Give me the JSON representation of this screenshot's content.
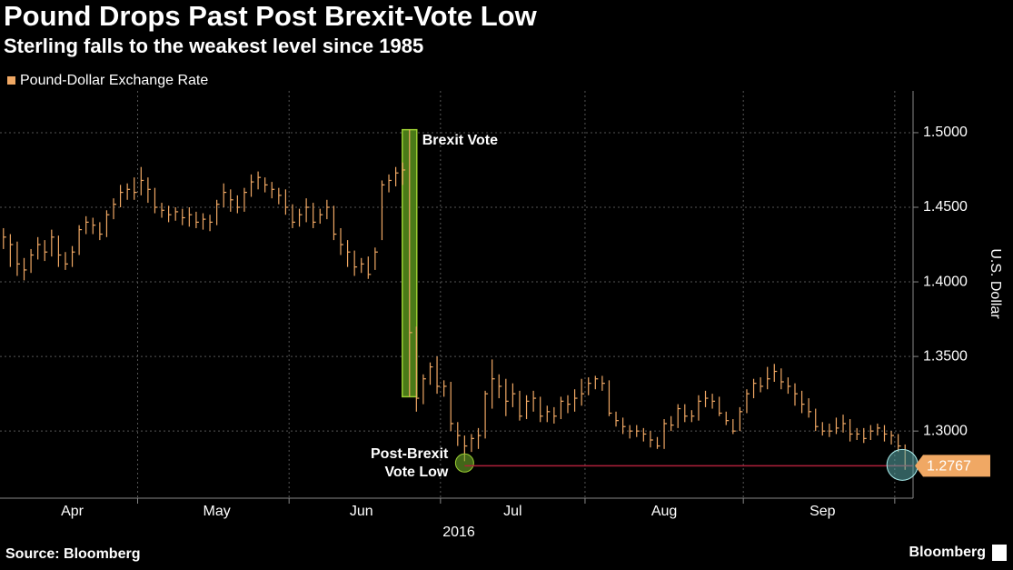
{
  "chart_data": {
    "type": "ohlc",
    "title": "Pound Drops Past Post Brexit-Vote Low",
    "subtitle": "Sterling falls to the weakest level since 1985",
    "source": "Source: Bloomberg",
    "brand": "Bloomberg",
    "y_label": "U.S. Dollar",
    "x_label": "2016",
    "categories": [
      null,
      null,
      null,
      null,
      null,
      null,
      null,
      null,
      null,
      null,
      "Apr",
      null,
      null,
      null,
      null,
      null,
      null,
      null,
      null,
      null,
      null,
      null,
      null,
      null,
      null,
      null,
      null,
      null,
      null,
      null,
      null,
      "May",
      null,
      null,
      null,
      null,
      null,
      null,
      null,
      null,
      null,
      null,
      null,
      null,
      null,
      null,
      null,
      null,
      null,
      null,
      null,
      null,
      "Jun",
      null,
      null,
      null,
      null,
      null,
      null,
      null,
      null,
      null,
      null,
      null,
      null,
      null,
      null,
      null,
      null,
      null,
      null,
      null,
      null,
      null,
      "Jul",
      null,
      null,
      null,
      null,
      null,
      null,
      null,
      null,
      null,
      null,
      null,
      null,
      null,
      null,
      null,
      null,
      null,
      null,
      null,
      null,
      null,
      "Aug",
      null,
      null,
      null,
      null,
      null,
      null,
      null,
      null,
      null,
      null,
      null,
      null,
      null,
      null,
      null,
      null,
      null,
      null,
      null,
      null,
      null,
      null,
      "Sep",
      null,
      null,
      null,
      null,
      null,
      null,
      null,
      null,
      null,
      null,
      null,
      null
    ],
    "series": [
      {
        "name": "Pound-Dollar Exchange Rate",
        "color": "#f0a864",
        "high": [
          1.436,
          1.432,
          1.427,
          1.416,
          1.422,
          1.43,
          1.428,
          1.435,
          1.431,
          1.42,
          1.424,
          1.438,
          1.444,
          1.443,
          1.44,
          1.448,
          1.456,
          1.465,
          1.466,
          1.47,
          1.477,
          1.47,
          1.463,
          1.453,
          1.451,
          1.45,
          1.449,
          1.45,
          1.447,
          1.446,
          1.445,
          1.455,
          1.466,
          1.462,
          1.458,
          1.463,
          1.472,
          1.474,
          1.47,
          1.467,
          1.463,
          1.462,
          1.452,
          1.449,
          1.456,
          1.453,
          1.449,
          1.455,
          1.451,
          1.436,
          1.428,
          1.421,
          1.416,
          1.417,
          1.423,
          1.468,
          1.472,
          1.477,
          1.48,
          1.502,
          1.37,
          1.338,
          1.346,
          1.35,
          1.334,
          1.333,
          1.306,
          1.297,
          1.298,
          1.302,
          1.327,
          1.348,
          1.338,
          1.335,
          1.332,
          1.327,
          1.324,
          1.327,
          1.323,
          1.317,
          1.316,
          1.323,
          1.324,
          1.328,
          1.335,
          1.336,
          1.337,
          1.337,
          1.334,
          1.313,
          1.309,
          1.304,
          1.304,
          1.302,
          1.3,
          1.296,
          1.308,
          1.31,
          1.318,
          1.318,
          1.314,
          1.324,
          1.327,
          1.325,
          1.323,
          1.313,
          1.308,
          1.316,
          1.328,
          1.335,
          1.336,
          1.343,
          1.345,
          1.342,
          1.336,
          1.332,
          1.327,
          1.322,
          1.315,
          1.306,
          1.305,
          1.309,
          1.311,
          1.308,
          1.302,
          1.302,
          1.304,
          1.305,
          1.304,
          1.3,
          1.298,
          1.291
        ],
        "low": [
          1.422,
          1.41,
          1.404,
          1.401,
          1.406,
          1.415,
          1.414,
          1.417,
          1.41,
          1.408,
          1.41,
          1.418,
          1.432,
          1.432,
          1.428,
          1.43,
          1.442,
          1.45,
          1.455,
          1.455,
          1.458,
          1.453,
          1.446,
          1.443,
          1.44,
          1.441,
          1.438,
          1.437,
          1.436,
          1.435,
          1.434,
          1.438,
          1.45,
          1.447,
          1.446,
          1.447,
          1.457,
          1.462,
          1.46,
          1.456,
          1.452,
          1.445,
          1.436,
          1.437,
          1.44,
          1.436,
          1.439,
          1.442,
          1.428,
          1.418,
          1.41,
          1.404,
          1.406,
          1.402,
          1.408,
          1.428,
          1.46,
          1.464,
          1.465,
          1.323,
          1.313,
          1.318,
          1.331,
          1.325,
          1.323,
          1.3,
          1.29,
          1.2798,
          1.286,
          1.288,
          1.295,
          1.315,
          1.322,
          1.31,
          1.316,
          1.307,
          1.308,
          1.313,
          1.306,
          1.306,
          1.305,
          1.308,
          1.312,
          1.313,
          1.317,
          1.324,
          1.328,
          1.327,
          1.31,
          1.303,
          1.298,
          1.295,
          1.296,
          1.293,
          1.289,
          1.288,
          1.288,
          1.3,
          1.302,
          1.306,
          1.306,
          1.307,
          1.316,
          1.315,
          1.31,
          1.304,
          1.298,
          1.3,
          1.312,
          1.322,
          1.326,
          1.328,
          1.333,
          1.328,
          1.325,
          1.317,
          1.312,
          1.309,
          1.3,
          1.297,
          1.296,
          1.298,
          1.299,
          1.293,
          1.294,
          1.292,
          1.294,
          1.297,
          1.293,
          1.291,
          1.286,
          1.274
        ],
        "close": [
          1.43,
          1.425,
          1.412,
          1.408,
          1.418,
          1.425,
          1.42,
          1.43,
          1.418,
          1.412,
          1.42,
          1.435,
          1.44,
          1.438,
          1.432,
          1.445,
          1.452,
          1.46,
          1.462,
          1.46,
          1.468,
          1.462,
          1.45,
          1.448,
          1.445,
          1.447,
          1.443,
          1.445,
          1.44,
          1.442,
          1.44,
          1.452,
          1.46,
          1.455,
          1.45,
          1.46,
          1.467,
          1.47,
          1.465,
          1.462,
          1.458,
          1.45,
          1.44,
          1.445,
          1.45,
          1.44,
          1.445,
          1.45,
          1.432,
          1.425,
          1.42,
          1.41,
          1.412,
          1.405,
          1.42,
          1.465,
          1.468,
          1.473,
          1.475,
          1.366,
          1.322,
          1.335,
          1.343,
          1.33,
          1.33,
          1.305,
          1.297,
          1.29,
          1.295,
          1.297,
          1.325,
          1.335,
          1.33,
          1.32,
          1.325,
          1.31,
          1.32,
          1.322,
          1.31,
          1.313,
          1.31,
          1.32,
          1.318,
          1.322,
          1.325,
          1.332,
          1.335,
          1.332,
          1.312,
          1.307,
          1.303,
          1.3,
          1.3,
          1.298,
          1.294,
          1.29,
          1.305,
          1.304,
          1.315,
          1.31,
          1.31,
          1.32,
          1.322,
          1.32,
          1.312,
          1.307,
          1.3,
          1.313,
          1.325,
          1.332,
          1.33,
          1.335,
          1.34,
          1.333,
          1.33,
          1.325,
          1.318,
          1.313,
          1.303,
          1.3,
          1.3,
          1.302,
          1.305,
          1.298,
          1.298,
          1.295,
          1.3,
          1.302,
          1.298,
          1.297,
          1.29,
          1.2767
        ]
      }
    ],
    "annotations": [
      {
        "text": "Brexit Vote"
      },
      {
        "text": "Post-Brexit Vote Low"
      }
    ],
    "ylim": [
      1.255,
      1.528
    ],
    "yticks": [
      {
        "value": 1.3,
        "label": "1.3000"
      },
      {
        "value": 1.35,
        "label": "1.3500"
      },
      {
        "value": 1.4,
        "label": "1.4000"
      },
      {
        "value": 1.45,
        "label": "1.4500"
      },
      {
        "value": 1.5,
        "label": "1.5000"
      }
    ],
    "grid": true,
    "legend": "top-left"
  }
}
